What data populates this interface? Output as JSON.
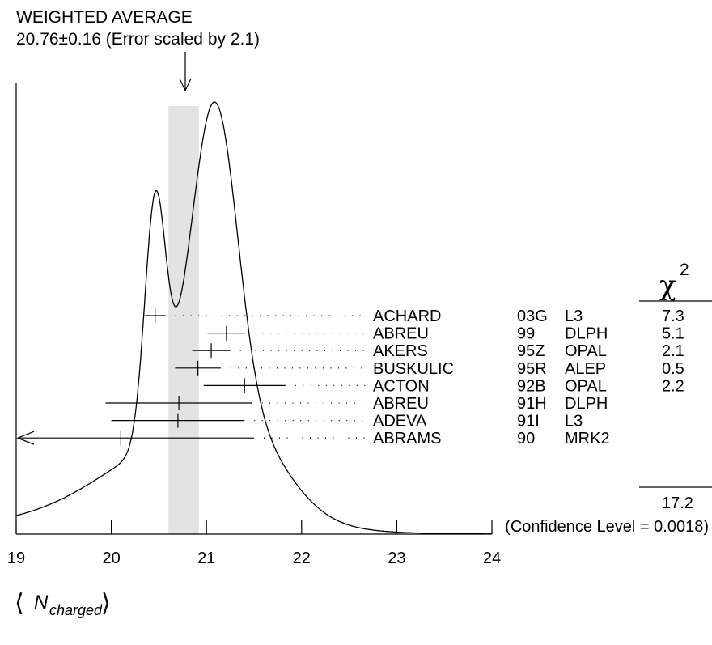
{
  "chart_data": {
    "type": "scatter",
    "title_line1": "WEIGHTED AVERAGE",
    "title_line2": "20.76±0.16 (Error scaled by 2.1)",
    "average": {
      "value": 20.76,
      "error": 0.16
    },
    "xlabel": {
      "n": "N",
      "sub": "charged",
      "open": "⟨",
      "close": "⟩"
    },
    "xlim": [
      19,
      24
    ],
    "xticks": [
      19,
      20,
      21,
      22,
      23,
      24
    ],
    "xtick_labels": [
      "19",
      "20",
      "21",
      "22",
      "23",
      "24"
    ],
    "chi2_header": {
      "symbol": "χ",
      "exp": "2"
    },
    "measurements": [
      {
        "author": "ACHARD",
        "ref": "03G",
        "exp": "L3",
        "value": 20.46,
        "err_lo": 0.11,
        "err_hi": 0.11,
        "chi2": "7.3"
      },
      {
        "author": "ABREU",
        "ref": "99",
        "exp": "DLPH",
        "value": 21.21,
        "err_lo": 0.2,
        "err_hi": 0.2,
        "chi2": "5.1"
      },
      {
        "author": "AKERS",
        "ref": "95Z",
        "exp": "OPAL",
        "value": 21.05,
        "err_lo": 0.2,
        "err_hi": 0.2,
        "chi2": "2.1"
      },
      {
        "author": "BUSKULIC",
        "ref": "95R",
        "exp": "ALEP",
        "value": 20.91,
        "err_lo": 0.24,
        "err_hi": 0.24,
        "chi2": "0.5"
      },
      {
        "author": "ACTON",
        "ref": "92B",
        "exp": "OPAL",
        "value": 21.4,
        "err_lo": 0.43,
        "err_hi": 0.43,
        "chi2": "2.2"
      },
      {
        "author": "ABREU",
        "ref": "91H",
        "exp": "DLPH",
        "value": 20.71,
        "err_lo": 0.77,
        "err_hi": 0.77,
        "chi2": ""
      },
      {
        "author": "ADEVA",
        "ref": "91I",
        "exp": "L3",
        "value": 20.7,
        "err_lo": 0.7,
        "err_hi": 0.7,
        "chi2": ""
      },
      {
        "author": "ABRAMS",
        "ref": "90",
        "exp": "MRK2",
        "value": 20.1,
        "err_lo": 1.1,
        "err_hi": 1.4,
        "arrow_left": true,
        "chi2": ""
      }
    ],
    "chi2_total": "17.2",
    "confidence": "(Confidence Level = 0.0018)"
  }
}
